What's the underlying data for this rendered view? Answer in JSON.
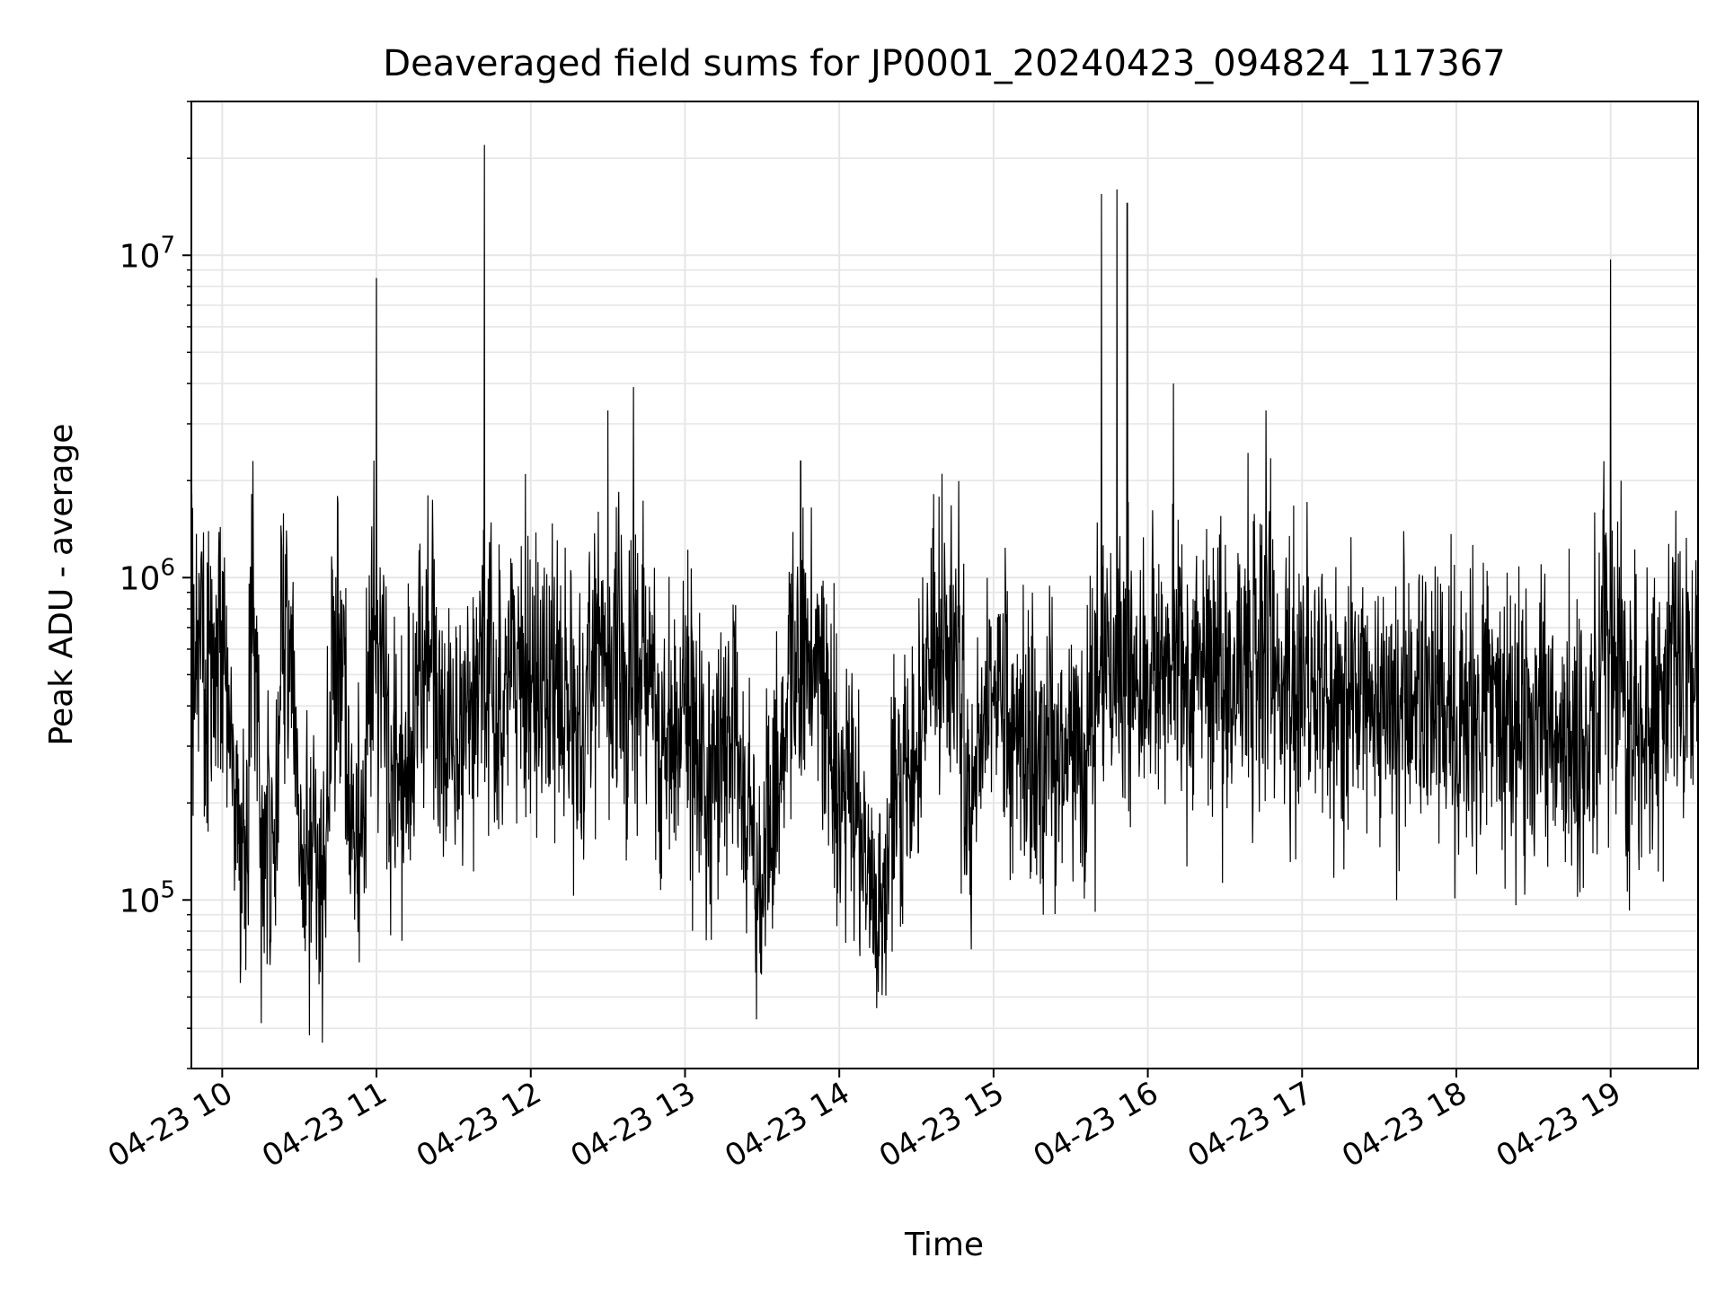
{
  "chart_data": {
    "type": "line",
    "title": "Deaveraged field sums for JP0001_20240423_094824_117367",
    "xlabel": "Time",
    "ylabel": "Peak ADU - average",
    "yscale": "log",
    "xlim": [
      "2024-04-23 09:48",
      "2024-04-23 19:34"
    ],
    "ylim": [
      30000,
      30000000
    ],
    "grid": true,
    "legend": "none",
    "line_color": "#000000",
    "x_ticks": [
      {
        "value": "2024-04-23 10:00",
        "label": "04-23 10"
      },
      {
        "value": "2024-04-23 11:00",
        "label": "04-23 11"
      },
      {
        "value": "2024-04-23 12:00",
        "label": "04-23 12"
      },
      {
        "value": "2024-04-23 13:00",
        "label": "04-23 13"
      },
      {
        "value": "2024-04-23 14:00",
        "label": "04-23 14"
      },
      {
        "value": "2024-04-23 15:00",
        "label": "04-23 15"
      },
      {
        "value": "2024-04-23 16:00",
        "label": "04-23 16"
      },
      {
        "value": "2024-04-23 17:00",
        "label": "04-23 17"
      },
      {
        "value": "2024-04-23 18:00",
        "label": "04-23 18"
      },
      {
        "value": "2024-04-23 19:00",
        "label": "04-23 19"
      }
    ],
    "y_ticks": [
      {
        "value": 100000,
        "base": "10",
        "exp": "5"
      },
      {
        "value": 1000000,
        "base": "10",
        "exp": "6"
      },
      {
        "value": 10000000,
        "base": "10",
        "exp": "7"
      }
    ],
    "series": [
      {
        "x": [
          "2024-04-23 09:48",
          "2024-04-23 09:52",
          "2024-04-23 09:55",
          "2024-04-23 09:58",
          "2024-04-23 10:02",
          "2024-04-23 10:05",
          "2024-04-23 10:08",
          "2024-04-23 10:10",
          "2024-04-23 10:12",
          "2024-04-23 10:15",
          "2024-04-23 10:20",
          "2024-04-23 10:25",
          "2024-04-23 10:30",
          "2024-04-23 10:35",
          "2024-04-23 10:40",
          "2024-04-23 10:45",
          "2024-04-23 10:50",
          "2024-04-23 10:55",
          "2024-04-23 11:00",
          "2024-04-23 11:05",
          "2024-04-23 11:10",
          "2024-04-23 11:15",
          "2024-04-23 11:20",
          "2024-04-23 11:25",
          "2024-04-23 11:30",
          "2024-04-23 11:35",
          "2024-04-23 11:40",
          "2024-04-23 11:42",
          "2024-04-23 11:45",
          "2024-04-23 11:50",
          "2024-04-23 11:55",
          "2024-04-23 12:00",
          "2024-04-23 12:10",
          "2024-04-23 12:20",
          "2024-04-23 12:30",
          "2024-04-23 12:38",
          "2024-04-23 12:40",
          "2024-04-23 12:50",
          "2024-04-23 13:00",
          "2024-04-23 13:10",
          "2024-04-23 13:20",
          "2024-04-23 13:30",
          "2024-04-23 13:40",
          "2024-04-23 13:45",
          "2024-04-23 13:50",
          "2024-04-23 14:00",
          "2024-04-23 14:10",
          "2024-04-23 14:15",
          "2024-04-23 14:20",
          "2024-04-23 14:30",
          "2024-04-23 14:40",
          "2024-04-23 14:50",
          "2024-04-23 15:00",
          "2024-04-23 15:10",
          "2024-04-23 15:20",
          "2024-04-23 15:30",
          "2024-04-23 15:35",
          "2024-04-23 15:40",
          "2024-04-23 15:42",
          "2024-04-23 15:45",
          "2024-04-23 15:48",
          "2024-04-23 15:50",
          "2024-04-23 15:52",
          "2024-04-23 15:55",
          "2024-04-23 16:00",
          "2024-04-23 16:10",
          "2024-04-23 16:15",
          "2024-04-23 16:20",
          "2024-04-23 16:30",
          "2024-04-23 16:40",
          "2024-04-23 16:46",
          "2024-04-23 16:50",
          "2024-04-23 17:00",
          "2024-04-23 17:10",
          "2024-04-23 17:20",
          "2024-04-23 17:30",
          "2024-04-23 17:40",
          "2024-04-23 17:50",
          "2024-04-23 18:00",
          "2024-04-23 18:10",
          "2024-04-23 18:20",
          "2024-04-23 18:30",
          "2024-04-23 18:40",
          "2024-04-23 18:50",
          "2024-04-23 18:55",
          "2024-04-23 19:00",
          "2024-04-23 19:05",
          "2024-04-23 19:08",
          "2024-04-23 19:10",
          "2024-04-23 19:15",
          "2024-04-23 19:20",
          "2024-04-23 19:25",
          "2024-04-23 19:30",
          "2024-04-23 19:34"
        ],
        "y": [
          900000,
          1200000,
          700000,
          800000,
          400000,
          220000,
          150000,
          120000,
          2300000,
          180000,
          130000,
          1400000,
          110000,
          150000,
          130000,
          1700000,
          150000,
          180000,
          8500000,
          200000,
          250000,
          300000,
          1800000,
          350000,
          280000,
          400000,
          500000,
          22000000,
          400000,
          450000,
          600000,
          500000,
          450000,
          300000,
          3300000,
          400000,
          3900000,
          250000,
          400000,
          220000,
          300000,
          120000,
          450000,
          2300000,
          600000,
          250000,
          140000,
          80000,
          180000,
          250000,
          2100000,
          250000,
          400000,
          350000,
          300000,
          280000,
          260000,
          400000,
          15500000,
          500000,
          16000000,
          350000,
          14500000,
          400000,
          500000,
          4000000,
          450000,
          600000,
          500000,
          550000,
          3300000,
          500000,
          450000,
          420000,
          400000,
          380000,
          420000,
          400000,
          350000,
          380000,
          350000,
          320000,
          350000,
          300000,
          380000,
          9700000,
          400000,
          350000,
          300000,
          350000,
          400000,
          600000,
          900000,
          1100000
        ],
        "amplitude": 0.42,
        "count": 3600,
        "seed": 117367
      }
    ]
  }
}
